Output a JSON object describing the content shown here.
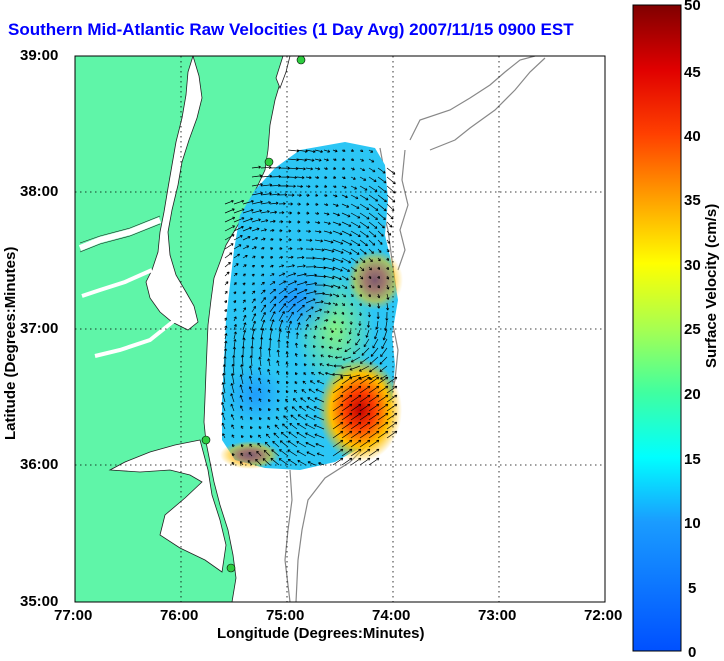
{
  "title": "Southern Mid-Atlantic Raw Velocities (1 Day Avg) 2007/11/15 0900 EST",
  "x_axis": {
    "label": "Longitude (Degrees:Minutes)",
    "ticks": [
      "77:00",
      "76:00",
      "75:00",
      "74:00",
      "73:00",
      "72:00"
    ]
  },
  "y_axis": {
    "label": "Latitude (Degrees:Minutes)",
    "ticks": [
      "39:00",
      "38:00",
      "37:00",
      "36:00",
      "35:00"
    ]
  },
  "colorbar": {
    "label": "Surface Velocity (cm/s)",
    "ticks": [
      "50",
      "45",
      "40",
      "35",
      "30",
      "25",
      "20",
      "15",
      "10",
      "5",
      "0"
    ],
    "min": 0,
    "max": 50
  },
  "colors": {
    "land": "#5ff5a8",
    "water": "#ffffff",
    "title": "#0000ff",
    "station": "#2ecc40"
  },
  "stations": [
    "station-1",
    "station-2",
    "station-3",
    "station-4"
  ]
}
